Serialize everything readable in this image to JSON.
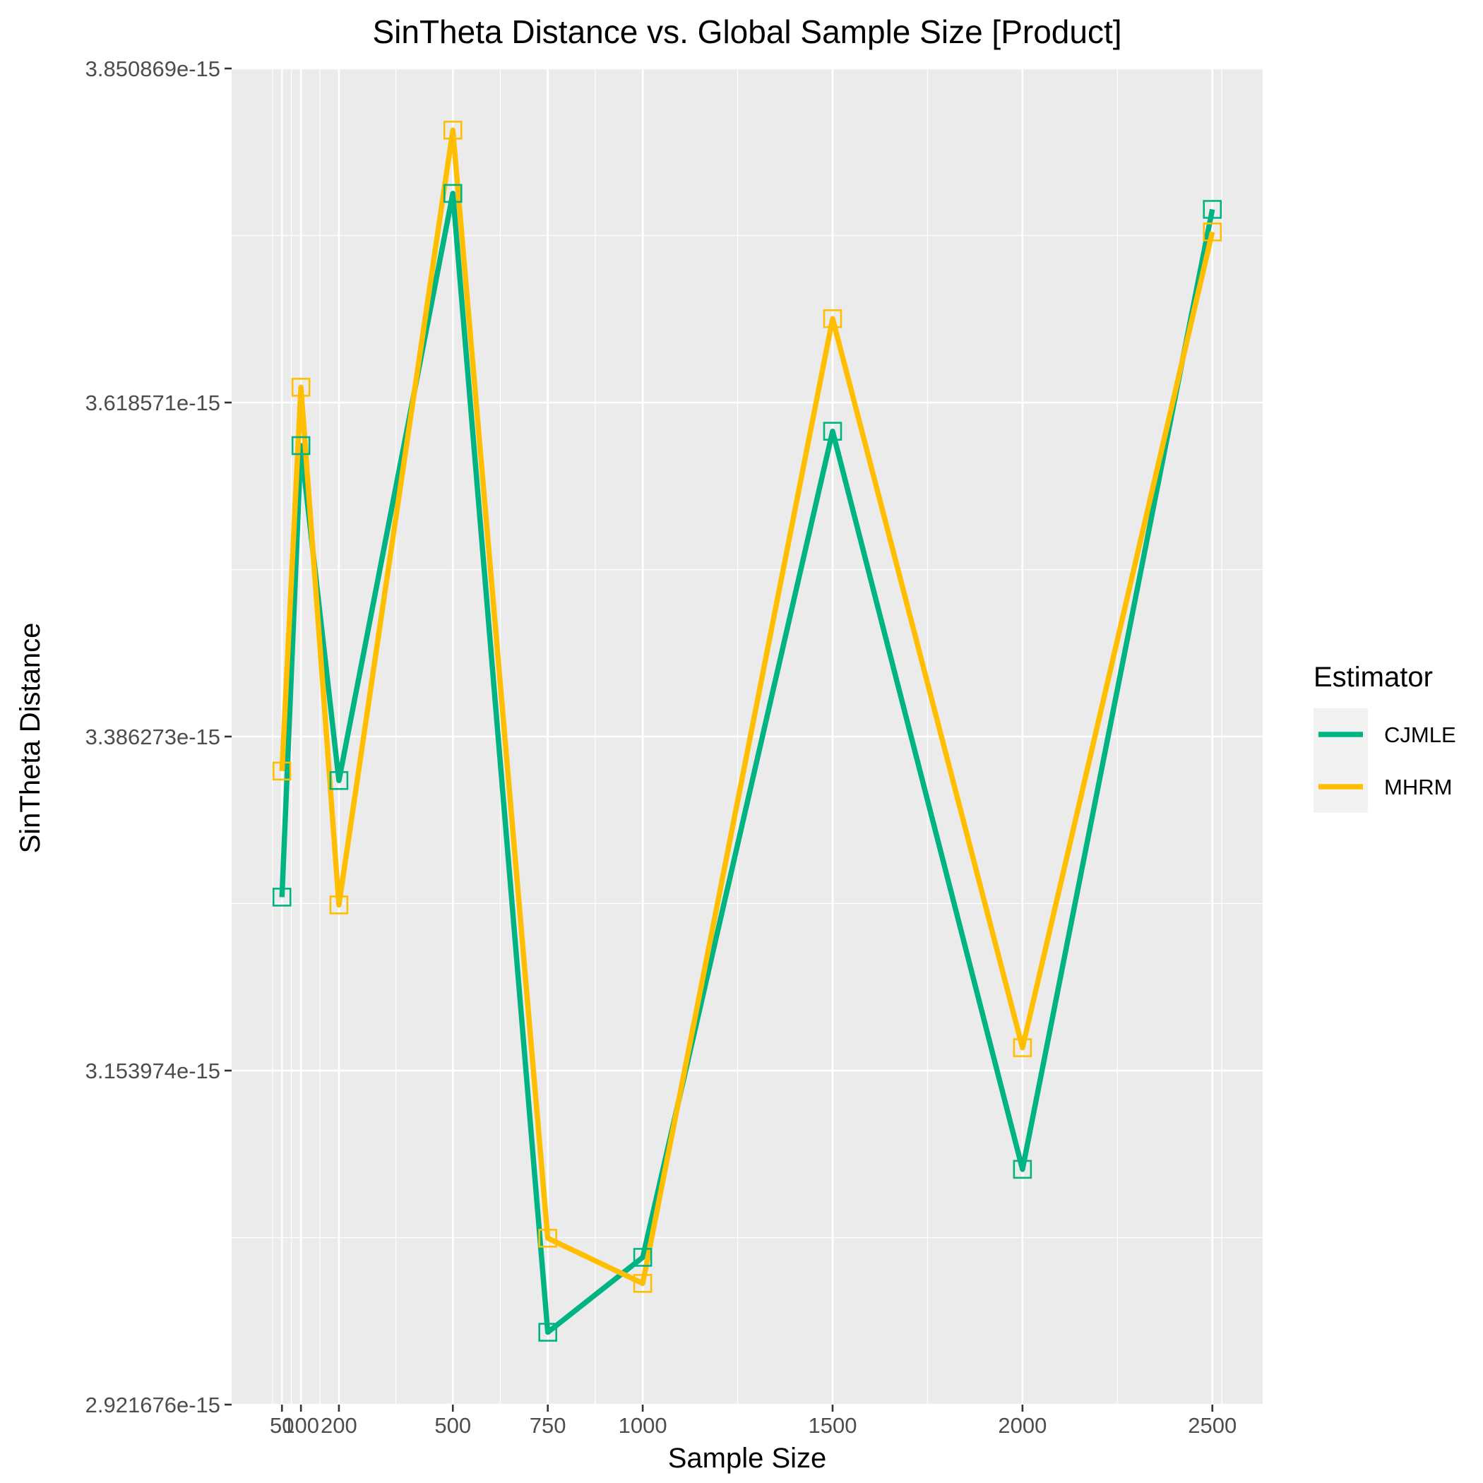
{
  "chart_data": {
    "type": "line",
    "title": "SinTheta Distance vs. Global Sample Size [Product]",
    "xlabel": "Sample Size",
    "ylabel": "SinTheta Distance",
    "x": [
      50,
      100,
      200,
      500,
      750,
      1000,
      1500,
      2000,
      2500
    ],
    "x_tick_labels": [
      "50",
      "100",
      "200",
      "500",
      "750",
      "1000",
      "1500",
      "2000",
      "2500"
    ],
    "y_tick_values": [
      2.921676e-15,
      3.153974e-15,
      3.386273e-15,
      3.618571e-15,
      3.850869e-15
    ],
    "y_tick_labels": [
      "2.921676e-15",
      "3.153974e-15",
      "3.386273e-15",
      "3.618571e-15",
      "3.850869e-15"
    ],
    "xlim": [
      -82.5,
      2632.5
    ],
    "ylim": [
      2.921676e-15,
      3.850869e-15
    ],
    "grid": true,
    "legend": {
      "title": "Estimator",
      "position": "right"
    },
    "series": [
      {
        "name": "CJMLE",
        "color": "#00b383",
        "values": [
          3.2746e-15,
          3.5886e-15,
          3.3557e-15,
          3.764e-15,
          2.972e-15,
          3.0241e-15,
          3.5986e-15,
          3.0853e-15,
          3.7529e-15
        ]
      },
      {
        "name": "MHRM",
        "color": "#ffbf00",
        "values": [
          3.3623e-15,
          3.6292e-15,
          3.2692e-15,
          3.808e-15,
          3.0374e-15,
          3.006e-15,
          3.6769e-15,
          3.1699e-15,
          3.7372e-15
        ]
      }
    ]
  }
}
